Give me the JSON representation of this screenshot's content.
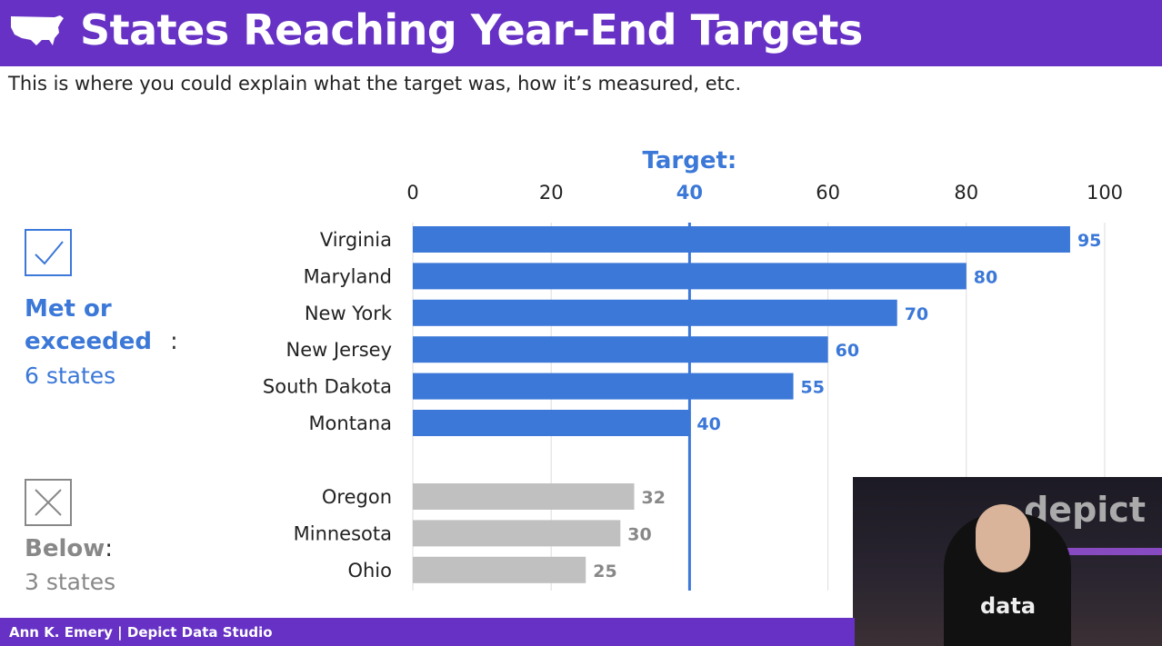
{
  "header": {
    "title": "States Reaching Year-End Targets",
    "subtitle": "This is where you could explain what the target was, how it’s measured, etc."
  },
  "legend": {
    "met": {
      "label": "Met or exceeded",
      "colon": ":",
      "count": "6 states",
      "icon": "checkmark-icon"
    },
    "below": {
      "label": "Below",
      "colon": ":",
      "count": "3 states",
      "icon": "x-icon"
    }
  },
  "footer": {
    "text": "Ann K. Emery  |  Depict Data Studio"
  },
  "webcam": {
    "logo": "depict",
    "shirt": "data"
  },
  "colors": {
    "brand": "#6631c4",
    "met": "#3b78d8",
    "below": "#c0c0c0"
  },
  "chart_data": {
    "type": "bar",
    "orientation": "horizontal",
    "target": {
      "label": "Target:",
      "value": 40
    },
    "xlim": [
      0,
      100
    ],
    "xticks": [
      0,
      20,
      40,
      60,
      80,
      100
    ],
    "groups": [
      {
        "name": "Met or exceeded",
        "categories": [
          "Virginia",
          "Maryland",
          "New York",
          "New Jersey",
          "South Dakota",
          "Montana"
        ],
        "values": [
          95,
          80,
          70,
          60,
          55,
          40
        ]
      },
      {
        "name": "Below",
        "categories": [
          "Oregon",
          "Minnesota",
          "Ohio"
        ],
        "values": [
          32,
          30,
          25
        ]
      }
    ]
  }
}
